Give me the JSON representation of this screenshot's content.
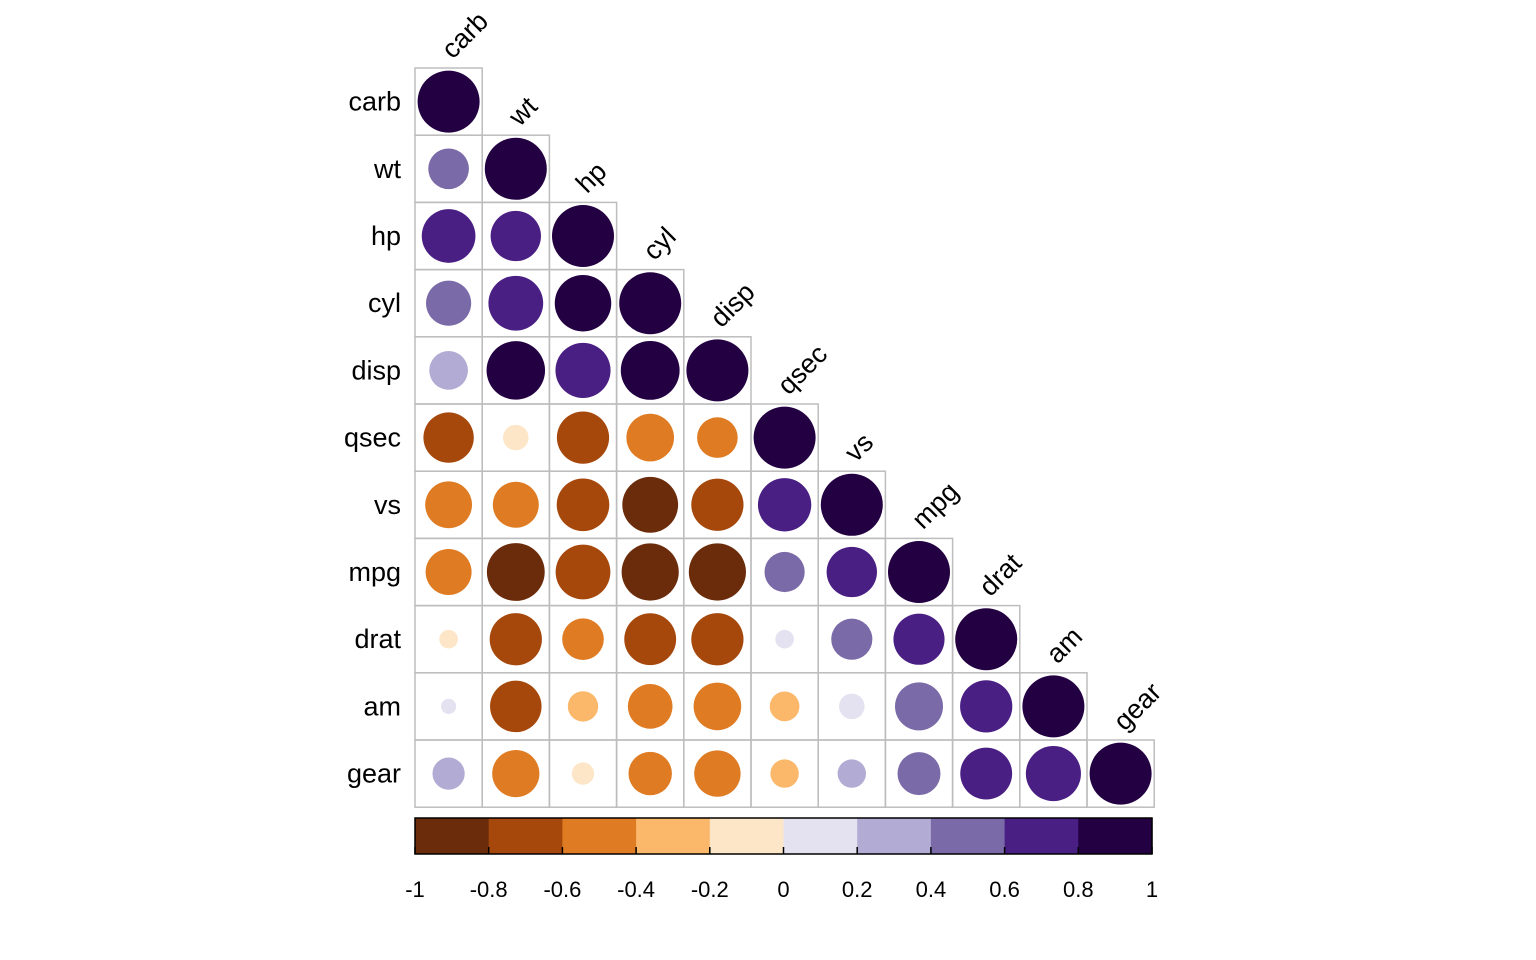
{
  "chart_data": {
    "type": "heatmap",
    "subtype": "correlation-matrix-lower-circles",
    "variables": [
      "carb",
      "wt",
      "hp",
      "cyl",
      "disp",
      "qsec",
      "vs",
      "mpg",
      "drat",
      "am",
      "gear"
    ],
    "matrix": [
      [
        1
      ],
      [
        0.43,
        1
      ],
      [
        0.75,
        0.66,
        1
      ],
      [
        0.53,
        0.78,
        0.83,
        1
      ],
      [
        0.39,
        0.89,
        0.79,
        0.9,
        1
      ],
      [
        -0.66,
        -0.17,
        -0.71,
        -0.59,
        -0.43,
        1
      ],
      [
        -0.57,
        -0.55,
        -0.72,
        -0.81,
        -0.71,
        0.74,
        1
      ],
      [
        -0.55,
        -0.87,
        -0.78,
        -0.85,
        -0.85,
        0.42,
        0.66,
        1
      ],
      [
        -0.09,
        -0.71,
        -0.45,
        -0.7,
        -0.71,
        0.09,
        0.44,
        0.68,
        1
      ],
      [
        0.06,
        -0.69,
        -0.24,
        -0.52,
        -0.59,
        -0.23,
        0.17,
        0.6,
        0.71,
        1
      ],
      [
        0.27,
        -0.58,
        -0.13,
        -0.49,
        -0.56,
        -0.21,
        0.21,
        0.48,
        0.7,
        0.79,
        1
      ]
    ],
    "color_scale": {
      "breaks": [
        -1,
        -0.8,
        -0.6,
        -0.4,
        -0.2,
        0,
        0.2,
        0.4,
        0.6,
        0.8,
        1
      ],
      "colors": [
        "#6b2c0b",
        "#a6480c",
        "#df7b22",
        "#fbb86b",
        "#fde6c7",
        "#e4e2f0",
        "#b2abd3",
        "#7b6aa8",
        "#4a1f84",
        "#220041"
      ]
    },
    "colorbar_ticks": [
      "-1",
      "-0.8",
      "-0.6",
      "-0.4",
      "-0.2",
      "0",
      "0.2",
      "0.4",
      "0.6",
      "0.8",
      "1"
    ],
    "grid": true,
    "legend": "bottom"
  }
}
